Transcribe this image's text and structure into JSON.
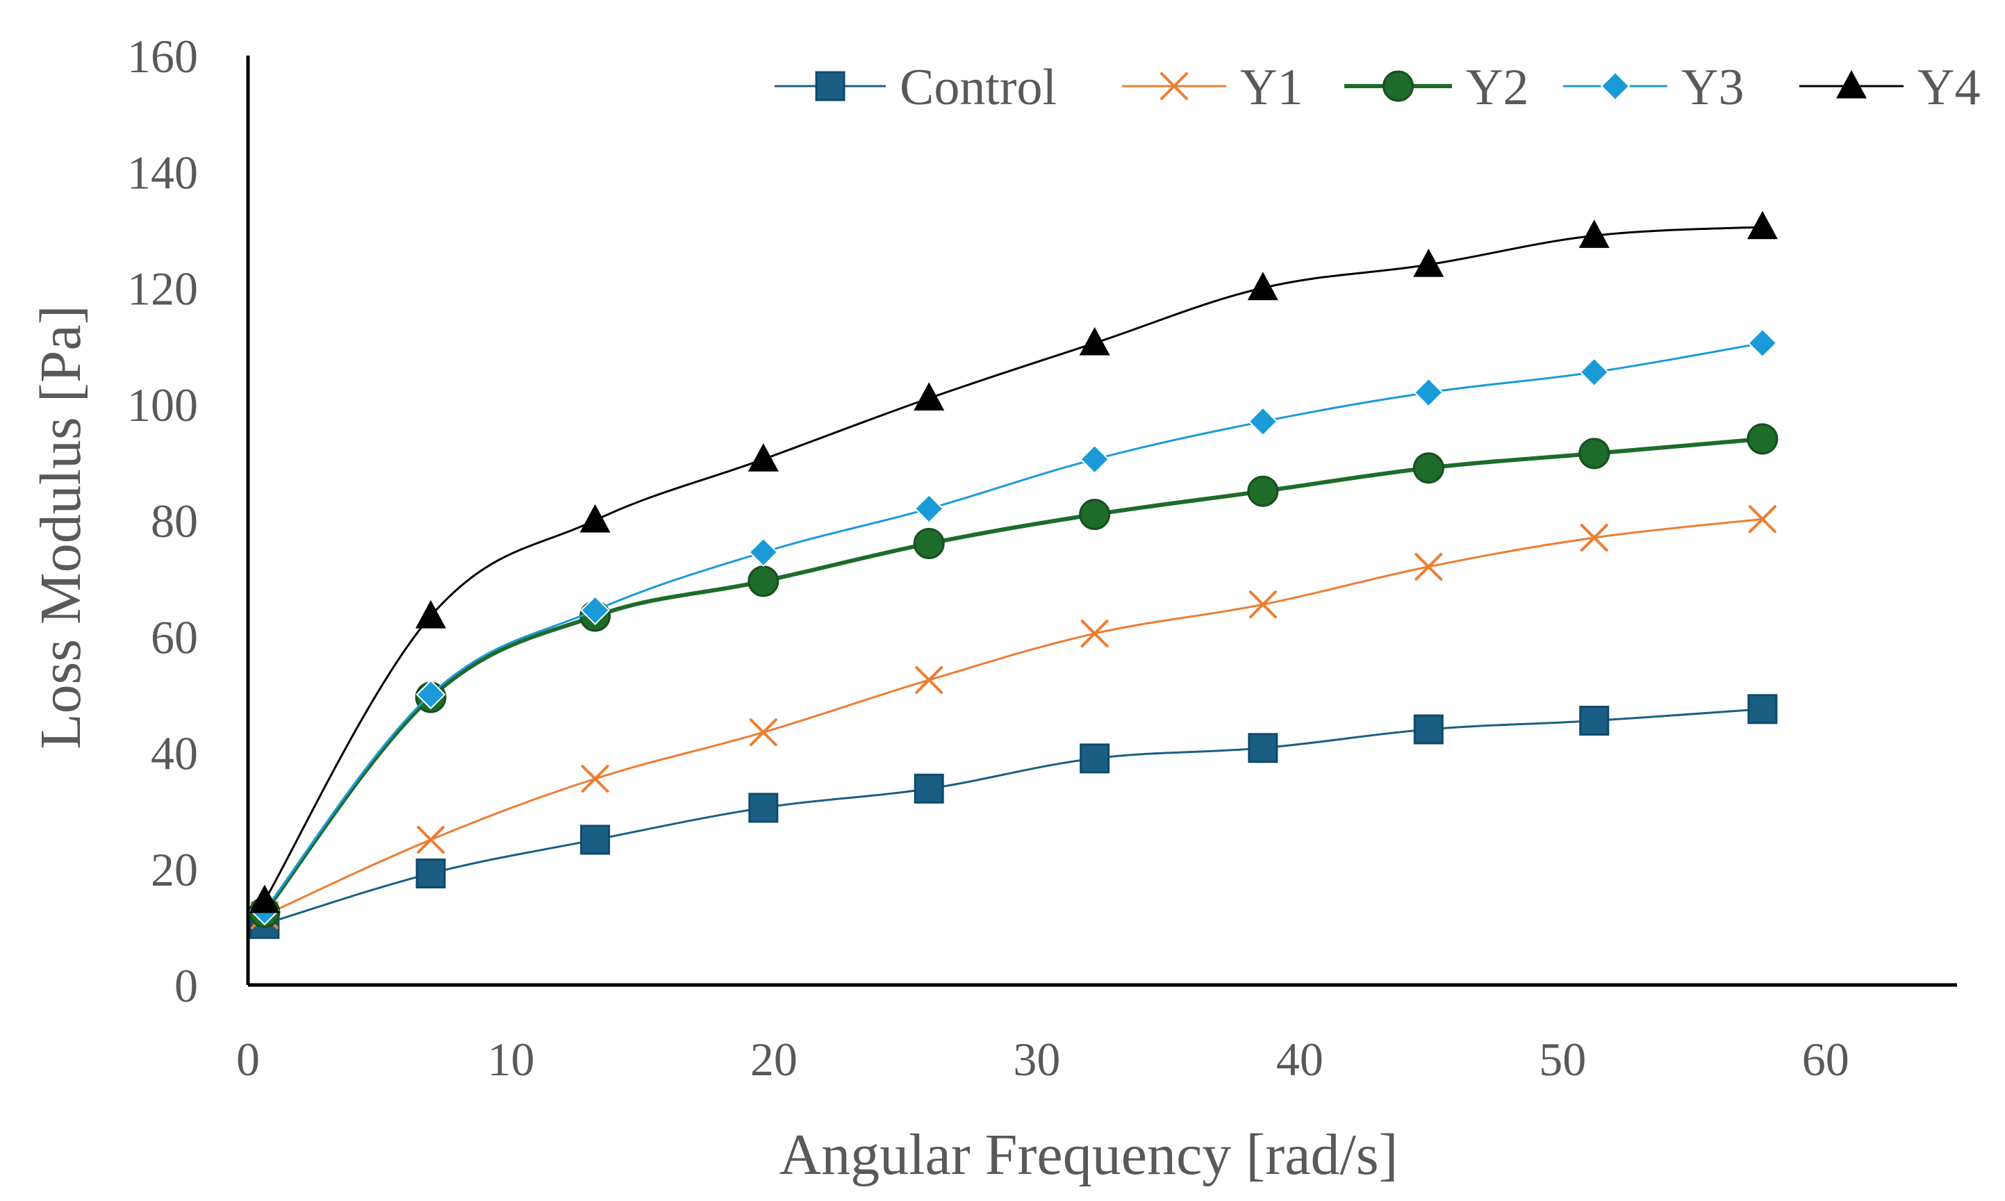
{
  "chart_data": {
    "type": "line",
    "title": "",
    "xlabel": "Angular Frequency [rad/s]",
    "ylabel": "Loss Modulus [Pa]",
    "xlim": [
      0,
      65
    ],
    "ylim": [
      0,
      160
    ],
    "xticks": [
      0,
      10,
      20,
      30,
      40,
      50,
      60
    ],
    "yticks": [
      0,
      20,
      40,
      60,
      80,
      100,
      120,
      140,
      160
    ],
    "x": [
      0.63,
      6.95,
      13.2,
      19.6,
      25.9,
      32.2,
      38.6,
      44.9,
      51.2,
      57.6
    ],
    "grid": false,
    "legend_position": "top",
    "series": [
      {
        "name": "Control",
        "color": "#1b5e84",
        "marker": "square",
        "values": [
          10.5,
          19.2,
          25,
          30.5,
          33.8,
          39,
          40.8,
          44,
          45.5,
          47.5
        ]
      },
      {
        "name": "Y1",
        "color": "#ed7d31",
        "marker": "x",
        "values": [
          12,
          25,
          35.5,
          43.5,
          52.5,
          60.5,
          65.5,
          72,
          77,
          80.2
        ]
      },
      {
        "name": "Y2",
        "color": "#1e6b2a",
        "marker": "circle",
        "values": [
          12.5,
          49.5,
          63.5,
          69.5,
          76,
          81,
          85,
          89,
          91.5,
          94
        ]
      },
      {
        "name": "Y3",
        "color": "#1a9bd7",
        "marker": "diamond",
        "values": [
          12.8,
          50,
          64.5,
          74.5,
          82,
          90.5,
          97,
          102,
          105.5,
          110.5
        ]
      },
      {
        "name": "Y4",
        "color": "#000000",
        "marker": "triangle",
        "values": [
          14.5,
          63.5,
          80,
          90.5,
          101,
          110.5,
          120,
          124,
          129,
          130.5
        ]
      }
    ]
  }
}
